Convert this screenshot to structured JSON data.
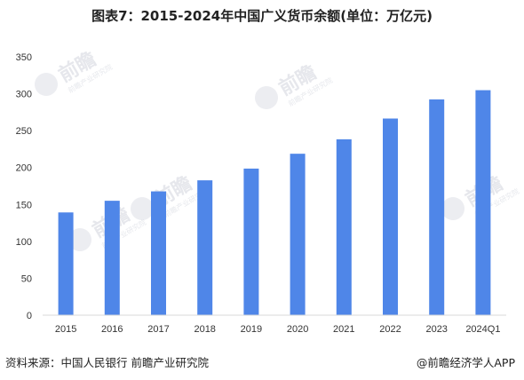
{
  "title": "图表7：2015-2024年中国广义货币余额(单位：万亿元)",
  "footer": {
    "source": "资料来源：中国人民银行 前瞻产业研究院",
    "brand": "@前瞻经济学人APP"
  },
  "watermark": {
    "brand": "前瞻",
    "institute": "前瞻产业研究院"
  },
  "colors": {
    "bar": "#4f86e8",
    "axis": "#d9d9d9",
    "text": "#333333"
  },
  "chart_data": {
    "type": "bar",
    "title": "图表7：2015-2024年中国广义货币余额(单位：万亿元)",
    "xlabel": "",
    "ylabel": "",
    "categories": [
      "2015",
      "2016",
      "2017",
      "2018",
      "2019",
      "2020",
      "2021",
      "2022",
      "2023",
      "2024Q1"
    ],
    "values": [
      139.2,
      155.0,
      167.7,
      182.7,
      198.6,
      218.7,
      238.3,
      266.4,
      292.3,
      304.8
    ],
    "ylim": [
      0,
      350
    ],
    "yticks": [
      0,
      50,
      100,
      150,
      200,
      250,
      300,
      350
    ],
    "grid": false,
    "legend": "none"
  }
}
